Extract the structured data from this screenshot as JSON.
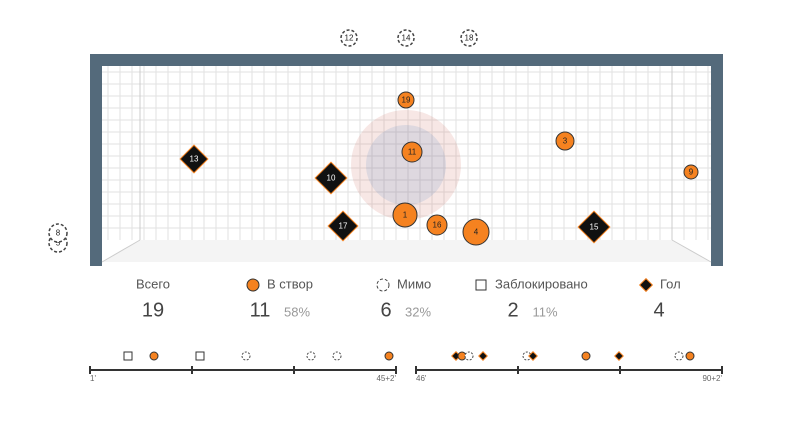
{
  "shots": [
    "5",
    "8",
    "12",
    "14",
    "18",
    "19",
    "11",
    "3",
    "13",
    "10",
    "9",
    "1",
    "16",
    "4",
    "17",
    "15"
  ],
  "stats": [
    {
      "label": "Всего",
      "count": 19
    },
    {
      "label": "В створ",
      "count": 11,
      "share": "58%"
    },
    {
      "label": "Мимо",
      "count": 6,
      "share": "32%"
    },
    {
      "label": "Заблокировано",
      "count": 2,
      "share": "11%"
    },
    {
      "label": "Гол",
      "count": 4
    }
  ],
  "timeline": {
    "first_half": [
      "1'",
      "45+2'"
    ],
    "second_half": [
      "46'",
      "90+2'"
    ]
  }
}
